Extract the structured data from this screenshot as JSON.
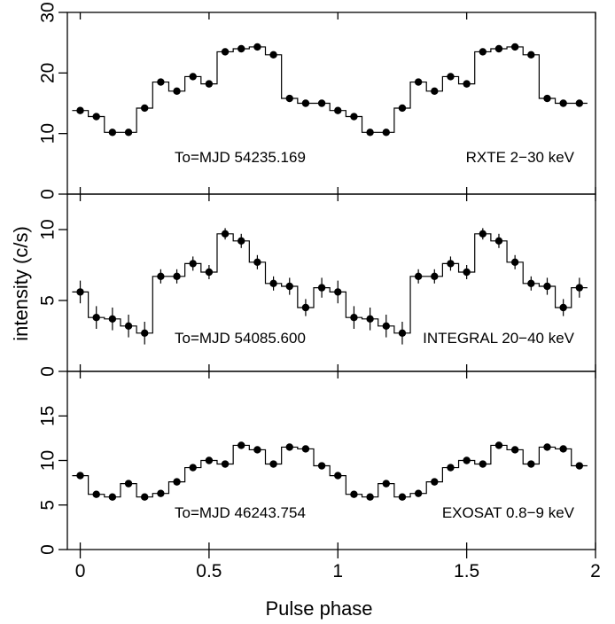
{
  "chart_data": {
    "type": "step-with-errorbars",
    "xlabel": "Pulse phase",
    "ylabel": "intensity (c/s)",
    "x_ticks": [
      0,
      0.5,
      1,
      1.5,
      2
    ],
    "x_tick_labels": [
      "0",
      "0.5",
      "1",
      "1.5",
      "2"
    ],
    "xlim": [
      -0.05,
      2.0
    ],
    "phase_bin_width": 0.0625,
    "phase_centers": [
      0,
      0.0625,
      0.125,
      0.1875,
      0.25,
      0.3125,
      0.375,
      0.4375,
      0.5,
      0.5625,
      0.625,
      0.6875,
      0.75,
      0.8125,
      0.875,
      0.9375,
      1.0,
      1.0625,
      1.125,
      1.1875,
      1.25,
      1.3125,
      1.375,
      1.4375,
      1.5,
      1.5625,
      1.625,
      1.6875,
      1.75,
      1.8125,
      1.875,
      1.9375
    ],
    "panels": [
      {
        "name": "rxte",
        "epoch_label": "To=MJD 54235.169",
        "instrument_label": "RXTE 2−30 keV",
        "ylim": [
          0,
          30
        ],
        "y_ticks": [
          0,
          10,
          20,
          30
        ],
        "y_tick_labels": [
          "0",
          "10",
          "20",
          "30"
        ],
        "values": [
          13.8,
          12.8,
          10.2,
          10.2,
          14.2,
          18.5,
          17.0,
          19.4,
          18.2,
          23.5,
          24.0,
          24.3,
          23.0,
          15.8,
          15.0,
          15.0,
          13.8,
          12.8,
          10.2,
          10.2,
          14.2,
          18.5,
          17.0,
          19.4,
          18.2,
          23.5,
          24.0,
          24.3,
          23.0,
          15.8,
          15.0,
          15.0
        ],
        "errors": [
          0.3,
          0.3,
          0.3,
          0.3,
          0.3,
          0.3,
          0.3,
          0.3,
          0.3,
          0.3,
          0.3,
          0.3,
          0.3,
          0.3,
          0.3,
          0.3,
          0.3,
          0.3,
          0.3,
          0.3,
          0.3,
          0.3,
          0.3,
          0.3,
          0.3,
          0.3,
          0.3,
          0.3,
          0.3,
          0.3,
          0.3,
          0.3
        ]
      },
      {
        "name": "integral",
        "epoch_label": "To=MJD 54085.600",
        "instrument_label": "INTEGRAL 20−40 keV",
        "ylim": [
          0,
          12.5
        ],
        "y_ticks": [
          0,
          5,
          10
        ],
        "y_tick_labels": [
          "0",
          "5",
          "10"
        ],
        "values": [
          5.6,
          3.8,
          3.7,
          3.2,
          2.7,
          6.7,
          6.7,
          7.6,
          7.0,
          9.7,
          9.2,
          7.7,
          6.2,
          6.0,
          4.5,
          5.9,
          5.6,
          3.8,
          3.7,
          3.2,
          2.7,
          6.7,
          6.7,
          7.6,
          7.0,
          9.7,
          9.2,
          7.7,
          6.2,
          6.0,
          4.5,
          5.9
        ],
        "errors": [
          0.8,
          0.8,
          0.8,
          0.8,
          0.8,
          0.5,
          0.5,
          0.5,
          0.5,
          0.4,
          0.5,
          0.5,
          0.5,
          0.6,
          0.6,
          0.7,
          0.8,
          0.8,
          0.8,
          0.8,
          0.8,
          0.5,
          0.5,
          0.5,
          0.5,
          0.4,
          0.5,
          0.5,
          0.5,
          0.6,
          0.6,
          0.7
        ]
      },
      {
        "name": "exosat",
        "epoch_label": "To=MJD 46243.754",
        "instrument_label": "EXOSAT 0.8−9 keV",
        "ylim": [
          0,
          20
        ],
        "y_ticks": [
          0,
          5,
          10,
          15
        ],
        "y_tick_labels": [
          "0",
          "5",
          "10",
          "15"
        ],
        "values": [
          8.3,
          6.2,
          5.9,
          7.4,
          5.9,
          6.3,
          7.6,
          9.2,
          10.0,
          9.6,
          11.7,
          11.2,
          9.6,
          11.5,
          11.3,
          9.4,
          8.3,
          6.2,
          5.9,
          7.4,
          5.9,
          6.3,
          7.6,
          9.2,
          10.0,
          9.6,
          11.7,
          11.2,
          9.6,
          11.5,
          11.3,
          9.4
        ],
        "errors": [
          0.15,
          0.15,
          0.15,
          0.15,
          0.15,
          0.15,
          0.15,
          0.15,
          0.15,
          0.15,
          0.15,
          0.15,
          0.15,
          0.15,
          0.15,
          0.15,
          0.15,
          0.15,
          0.15,
          0.15,
          0.15,
          0.15,
          0.15,
          0.15,
          0.15,
          0.15,
          0.15,
          0.15,
          0.15,
          0.15,
          0.15,
          0.15
        ]
      }
    ]
  }
}
